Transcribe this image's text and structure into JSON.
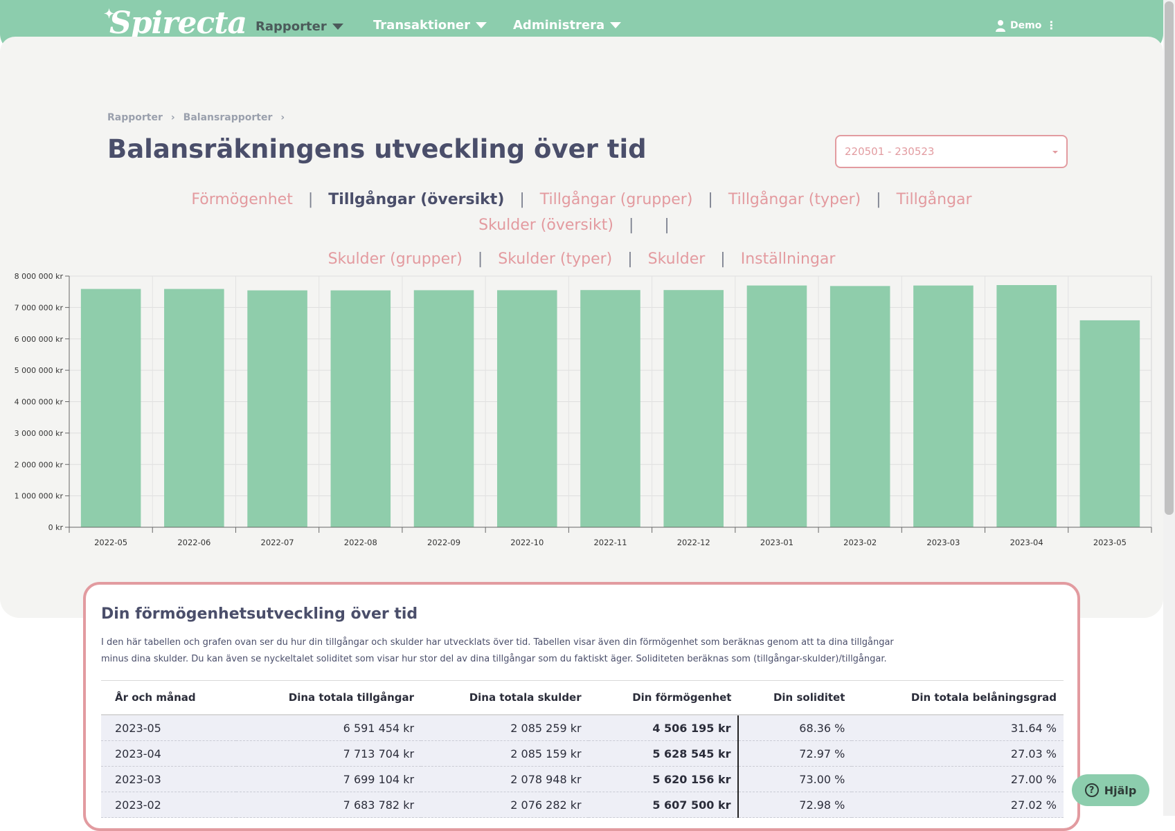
{
  "nav": {
    "logo": "Spirecta",
    "items": [
      {
        "label": "Rapporter",
        "active": true
      },
      {
        "label": "Transaktioner",
        "active": false
      },
      {
        "label": "Administrera",
        "active": false
      }
    ],
    "user": "Demo"
  },
  "breadcrumb": [
    "Rapporter",
    "Balansrapporter"
  ],
  "page_title": "Balansräkningens utveckling över tid",
  "date_range": "220501 - 230523",
  "tabs": [
    {
      "label": "Förmögenhet",
      "active": false
    },
    {
      "label": "Tillgångar (översikt)",
      "active": true
    },
    {
      "label": "Tillgångar (grupper)",
      "active": false
    },
    {
      "label": "Tillgångar (typer)",
      "active": false
    },
    {
      "label": "Tillgångar",
      "active": false
    },
    {
      "label": "Skulder (översikt)",
      "active": false
    },
    {
      "label": "Skulder (grupper)",
      "active": false
    },
    {
      "label": "Skulder (typer)",
      "active": false
    },
    {
      "label": "Skulder",
      "active": false
    },
    {
      "label": "Inställningar",
      "active": false
    }
  ],
  "chart_data": {
    "type": "bar",
    "categories": [
      "2022-05",
      "2022-06",
      "2022-07",
      "2022-08",
      "2022-09",
      "2022-10",
      "2022-11",
      "2022-12",
      "2023-01",
      "2023-02",
      "2023-03",
      "2023-04",
      "2023-05"
    ],
    "values": [
      7590000,
      7590000,
      7545000,
      7545000,
      7550000,
      7550000,
      7555000,
      7555000,
      7700000,
      7683782,
      7699104,
      7713704,
      6591454
    ],
    "ylim": [
      0,
      8000000
    ],
    "yticks": [
      0,
      1000000,
      2000000,
      3000000,
      4000000,
      5000000,
      6000000,
      7000000,
      8000000
    ],
    "ytick_labels": [
      "0 kr",
      "1 000 000 kr",
      "2 000 000 kr",
      "3 000 000 kr",
      "4 000 000 kr",
      "5 000 000 kr",
      "6 000 000 kr",
      "7 000 000 kr",
      "8 000 000 kr"
    ],
    "bar_color": "#8fcdab",
    "grid": true
  },
  "card": {
    "title": "Din förmögenhetsutveckling över tid",
    "description": "I den här tabellen och grafen ovan ser du hur din tillgångar och skulder har utvecklats över tid. Tabellen visar även din förmögenhet som beräknas genom att ta dina tillgångar minus dina skulder. Du kan även se nyckeltalet soliditet som visar hur stor del av dina tillgångar som du faktiskt äger. Soliditeten beräknas som (tillgångar-skulder)/tillgångar."
  },
  "table": {
    "headers": [
      "År och månad",
      "Dina totala tillgångar",
      "Dina totala skulder",
      "Din förmögenhet",
      "Din soliditet",
      "Din totala belåningsgrad"
    ],
    "rows": [
      [
        "2023-05",
        "6 591 454 kr",
        "2 085 259 kr",
        "4 506 195 kr",
        "68.36 %",
        "31.64 %"
      ],
      [
        "2023-04",
        "7 713 704 kr",
        "2 085 159 kr",
        "5 628 545 kr",
        "72.97 %",
        "27.03 %"
      ],
      [
        "2023-03",
        "7 699 104 kr",
        "2 078 948 kr",
        "5 620 156 kr",
        "73.00 %",
        "27.00 %"
      ],
      [
        "2023-02",
        "7 683 782 kr",
        "2 076 282 kr",
        "5 607 500 kr",
        "72.98 %",
        "27.02 %"
      ]
    ]
  },
  "help_label": "Hjälp",
  "colors": {
    "brand": "#8ccdad",
    "accent": "#e29ba0",
    "text": "#4a4e6a",
    "background": "#f4f4f2"
  }
}
